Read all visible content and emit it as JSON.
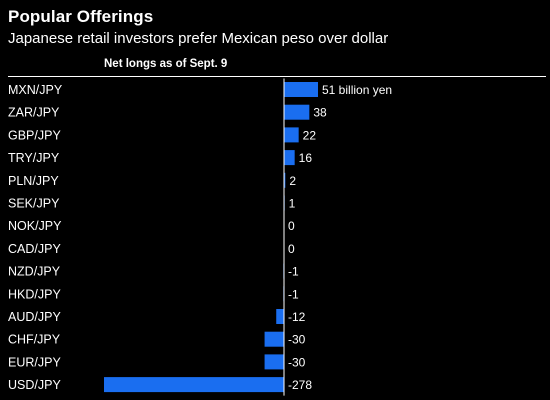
{
  "header": {
    "title": "Popular Offerings",
    "subtitle": "Japanese retail investors prefer Mexican peso over dollar",
    "column_label": "Net longs as of Sept. 9"
  },
  "colors": {
    "background": "#000000",
    "bar": "#1a6ef0",
    "text": "#ffffff",
    "axis": "#ffffff"
  },
  "chart_data": {
    "type": "bar",
    "orientation": "horizontal",
    "title": "Popular Offerings",
    "subtitle": "Japanese retail investors prefer Mexican peso over dollar",
    "column_label": "Net longs as of Sept. 9",
    "unit_label": "billion yen",
    "categories": [
      "MXN/JPY",
      "ZAR/JPY",
      "GBP/JPY",
      "TRY/JPY",
      "PLN/JPY",
      "SEK/JPY",
      "NOK/JPY",
      "CAD/JPY",
      "NZD/JPY",
      "HKD/JPY",
      "AUD/JPY",
      "CHF/JPY",
      "EUR/JPY",
      "USD/JPY"
    ],
    "values": [
      51,
      38,
      22,
      16,
      2,
      1,
      0,
      0,
      -1,
      -1,
      -12,
      -30,
      -30,
      -278
    ],
    "value_labels": [
      "51 billion yen",
      "38",
      "22",
      "16",
      "2",
      "1",
      "0",
      "0",
      "-1",
      "-1",
      "-12",
      "-30",
      "-30",
      "-278"
    ],
    "xlim": [
      -278,
      51
    ],
    "grid": false,
    "legend": "none"
  }
}
